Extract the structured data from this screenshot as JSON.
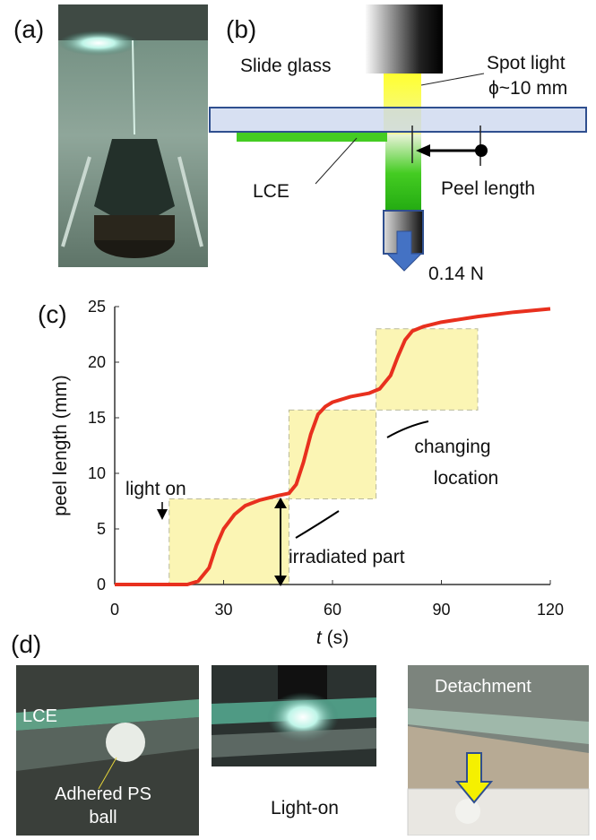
{
  "panel_labels": {
    "a": "(a)",
    "b": "(b)",
    "c": "(c)",
    "d": "(d)"
  },
  "schematic": {
    "slide_glass": "Slide glass",
    "spot_light": "Spot light",
    "spot_size": "ϕ~10 mm",
    "lce": "LCE",
    "peel_length": "Peel length",
    "load": "0.14 N"
  },
  "photos": {
    "lce": "LCE",
    "ball": [
      "Adhered PS",
      "ball"
    ],
    "light_on": "Light-on",
    "detachment": "Detachment"
  },
  "chart_data": {
    "type": "line",
    "xlabel": {
      "symbol": "t",
      "unit": " (s)"
    },
    "ylabel": "peel length (mm)",
    "x": [
      0,
      10,
      20,
      23,
      26,
      28,
      30,
      33,
      36,
      40,
      45,
      48,
      50,
      52,
      54,
      56,
      58,
      60,
      65,
      70,
      73,
      76,
      78,
      80,
      82,
      85,
      90,
      100,
      110,
      120
    ],
    "series": [
      {
        "color": "#e8301e",
        "values": [
          0,
          0,
          0,
          0.3,
          1.5,
          3.5,
          5,
          6.3,
          7.1,
          7.6,
          8,
          8.2,
          9,
          11,
          13.5,
          15.3,
          16,
          16.4,
          16.9,
          17.2,
          17.6,
          18.8,
          20.5,
          22,
          22.8,
          23.2,
          23.6,
          24.1,
          24.5,
          24.8
        ]
      }
    ],
    "xlim": [
      0,
      120
    ],
    "xticks": [
      0,
      30,
      60,
      90,
      120
    ],
    "ylim": [
      0,
      25
    ],
    "yticks": [
      0,
      5,
      10,
      15,
      20,
      25
    ],
    "regions": {
      "color": "#fbf5b4",
      "items": [
        {
          "x": [
            15,
            48
          ],
          "y": [
            0,
            7.7
          ]
        },
        {
          "x": [
            48,
            72
          ],
          "y": [
            7.7,
            15.7
          ]
        },
        {
          "x": [
            72,
            100
          ],
          "y": [
            15.7,
            23
          ]
        }
      ]
    },
    "annotations": {
      "light_on": "light on",
      "irradiated": "irradiated part",
      "changing": [
        "changing",
        "location"
      ]
    }
  }
}
